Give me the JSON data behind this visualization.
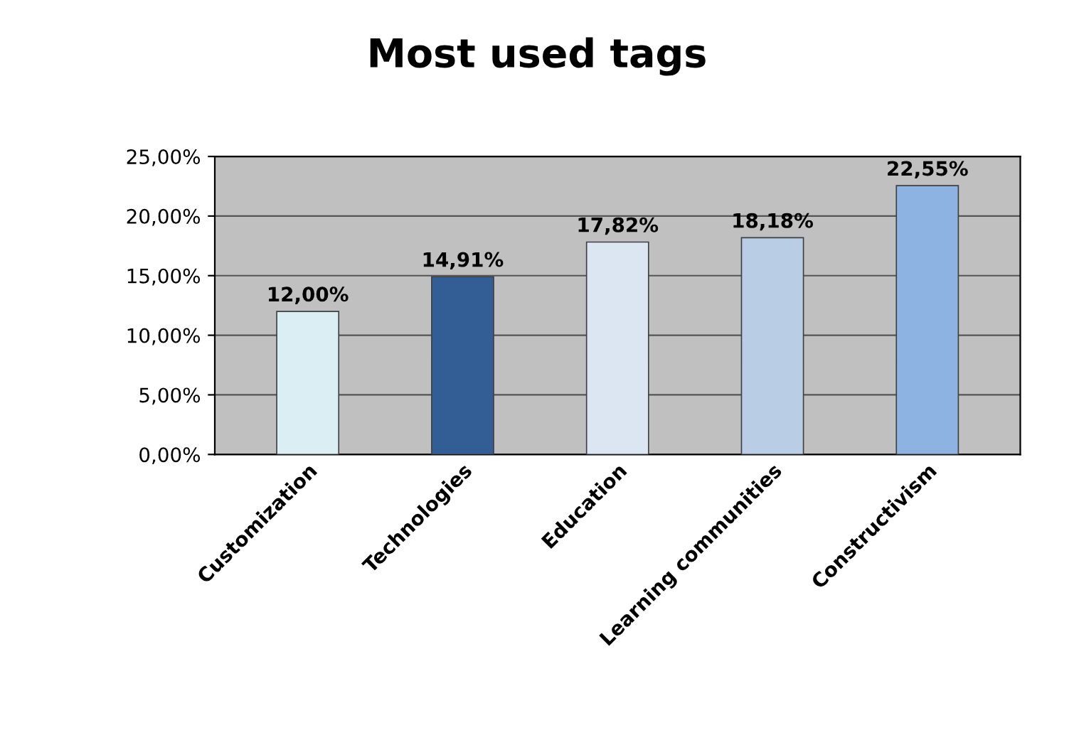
{
  "chart_data": {
    "type": "bar",
    "title": "Most used tags",
    "categories": [
      "Customization",
      "Technologies",
      "Education",
      "Learning communities",
      "Constructivism"
    ],
    "values": [
      12.0,
      14.91,
      17.82,
      18.18,
      22.55
    ],
    "colors": [
      "#dbeef4",
      "#335e95",
      "#dce6f2",
      "#b9cde5",
      "#8db3e2"
    ],
    "value_labels": [
      "12,00%",
      "14,91%",
      "17,82%",
      "18,18%",
      "22,55%"
    ],
    "ylim": [
      0,
      25
    ],
    "yticks": [
      {
        "value": 0,
        "label": "0,00%"
      },
      {
        "value": 5,
        "label": "5,00%"
      },
      {
        "value": 10,
        "label": "10,00%"
      },
      {
        "value": 15,
        "label": "15,00%"
      },
      {
        "value": 20,
        "label": "20,00%"
      },
      {
        "value": 25,
        "label": "25,00%"
      }
    ],
    "grid": "y"
  }
}
